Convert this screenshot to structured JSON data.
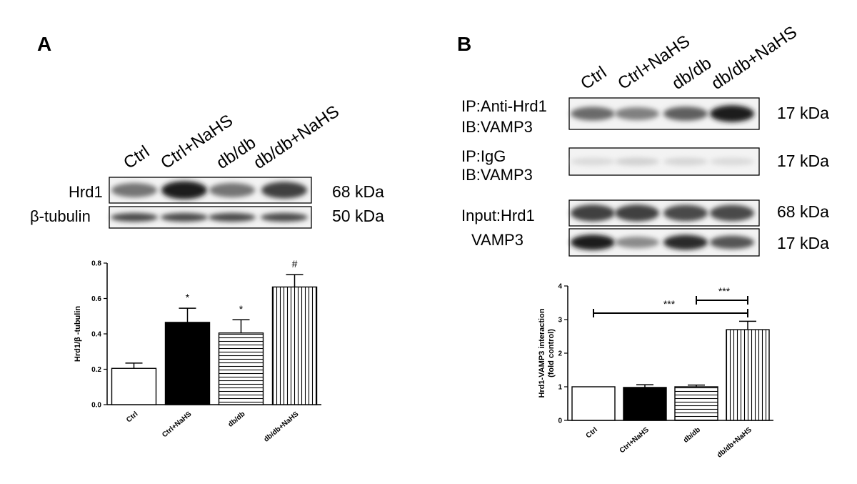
{
  "panels": {
    "a": {
      "letter": "A",
      "lanes": [
        "Ctrl",
        "Ctrl+NaHS",
        "db/db",
        "db/db+NaHS"
      ],
      "blots": [
        {
          "label": "Hrd1",
          "size": "68 kDa",
          "intensity": [
            0.55,
            0.95,
            0.55,
            0.8
          ]
        },
        {
          "label": "β-tubulin",
          "size": "50 kDa",
          "intensity": [
            0.75,
            0.75,
            0.75,
            0.75
          ]
        }
      ]
    },
    "b": {
      "letter": "B",
      "lanes": [
        "Ctrl",
        "Ctrl+NaHS",
        "db/db",
        "db/db+NaHS"
      ],
      "blots": [
        {
          "label_lines": [
            "IP:Anti-Hrd1",
            "IB:VAMP3"
          ],
          "size": "17 kDa",
          "intensity": [
            0.6,
            0.5,
            0.65,
            0.95
          ]
        },
        {
          "label_lines": [
            "IP:IgG",
            "IB:VAMP3"
          ],
          "size": "17 kDa",
          "intensity": [
            0.08,
            0.12,
            0.1,
            0.08
          ]
        },
        {
          "label_lines": [
            "Input:Hrd1"
          ],
          "size": "68 kDa",
          "intensity": [
            0.8,
            0.8,
            0.75,
            0.75
          ]
        },
        {
          "label_lines": [
            "VAMP3"
          ],
          "size": "17 kDa",
          "intensity": [
            0.95,
            0.45,
            0.9,
            0.7
          ]
        }
      ]
    }
  },
  "chart_data": [
    {
      "type": "bar",
      "categories": [
        "Ctrl",
        "Ctrl+NaHS",
        "db/db",
        "db/db+NaHS"
      ],
      "values": [
        0.205,
        0.465,
        0.405,
        0.665
      ],
      "errors": [
        0.03,
        0.08,
        0.075,
        0.07
      ],
      "significance": [
        "",
        "*",
        "*",
        "#"
      ],
      "patterns": [
        "white",
        "black",
        "horizontal",
        "vertical"
      ],
      "ylabel": "Hrd1/β -tubulin",
      "ylim": [
        0,
        0.8
      ],
      "yticks": [
        "0.0",
        "0.2",
        "0.4",
        "0.6",
        "0.8"
      ],
      "grid": false
    },
    {
      "type": "bar",
      "categories": [
        "Ctrl",
        "Ctrl+NaHS",
        "db/db",
        "db/db+NaHS"
      ],
      "values": [
        1.0,
        0.98,
        1.0,
        2.7
      ],
      "errors": [
        0,
        0.08,
        0.05,
        0.25
      ],
      "patterns": [
        "white",
        "black",
        "horizontal",
        "vertical"
      ],
      "ylabel_lines": [
        "Hrd1-VAMP3 interaction",
        "(fold control)"
      ],
      "ylim": [
        0,
        4
      ],
      "yticks": [
        "0",
        "1",
        "2",
        "3",
        "4"
      ],
      "brackets": [
        {
          "from": "Ctrl",
          "to": "db/db+NaHS",
          "label": "***"
        },
        {
          "from": "db/db",
          "to": "db/db+NaHS",
          "label": "***"
        }
      ],
      "grid": false
    }
  ]
}
